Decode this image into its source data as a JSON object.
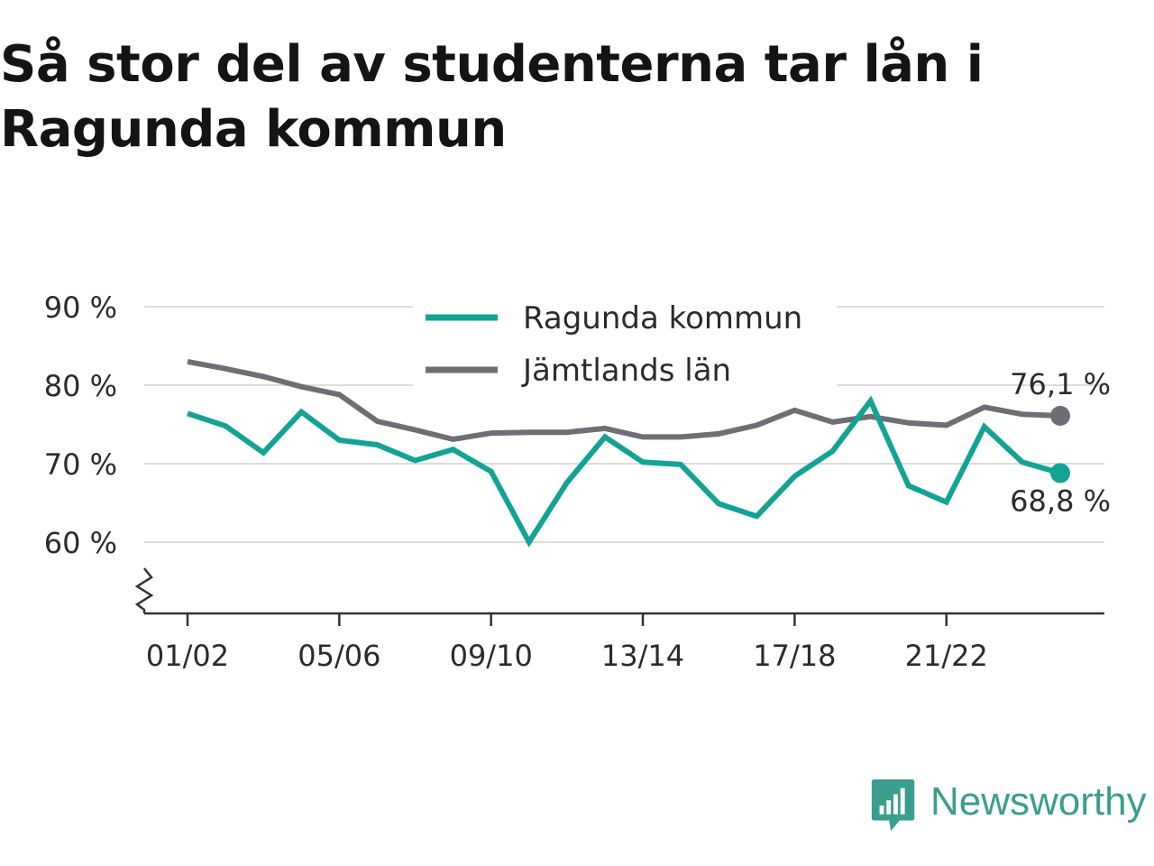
{
  "title": "Så stor del av studenterna tar lån i Ragunda kommun",
  "brand": {
    "name": "Newsworthy",
    "icon": "newsworthy-logo-icon",
    "color": "#3a9e8f"
  },
  "chart_data": {
    "type": "line",
    "title": "Så stor del av studenterna tar lån i Ragunda kommun",
    "x_tick_labels": [
      "01/02",
      "05/06",
      "09/10",
      "13/14",
      "17/18",
      "21/22"
    ],
    "x": [
      "01/02",
      "02/03",
      "03/04",
      "04/05",
      "05/06",
      "06/07",
      "07/08",
      "08/09",
      "09/10",
      "10/11",
      "11/12",
      "12/13",
      "13/14",
      "14/15",
      "15/16",
      "16/17",
      "17/18",
      "18/19",
      "19/20",
      "20/21",
      "21/22",
      "22/23",
      "23/24",
      "24/25"
    ],
    "y_ticks": [
      60,
      70,
      80,
      90
    ],
    "y_tick_labels": [
      "60 %",
      "70 %",
      "80 %",
      "90 %"
    ],
    "ylim": [
      51,
      90
    ],
    "y_axis_break": true,
    "grid": true,
    "legend_position": "top-center",
    "series": [
      {
        "name": "Ragunda kommun",
        "color": "#13a394",
        "values": [
          76.4,
          74.8,
          71.4,
          76.6,
          73.0,
          72.4,
          70.4,
          71.8,
          69.0,
          60.0,
          67.6,
          73.4,
          70.2,
          69.9,
          64.9,
          63.3,
          68.4,
          71.6,
          78.0,
          67.2,
          65.1,
          74.7,
          70.2,
          68.8
        ],
        "end_label": "68,8 %"
      },
      {
        "name": "Jämtlands län",
        "color": "#6f6e75",
        "values": [
          83.0,
          82.1,
          81.1,
          79.8,
          78.8,
          75.4,
          74.3,
          73.1,
          73.9,
          74.0,
          74.0,
          74.5,
          73.4,
          73.4,
          73.8,
          74.9,
          76.8,
          75.3,
          76.0,
          75.2,
          74.9,
          77.2,
          76.3,
          76.1
        ],
        "end_label": "76,1 %"
      }
    ]
  }
}
